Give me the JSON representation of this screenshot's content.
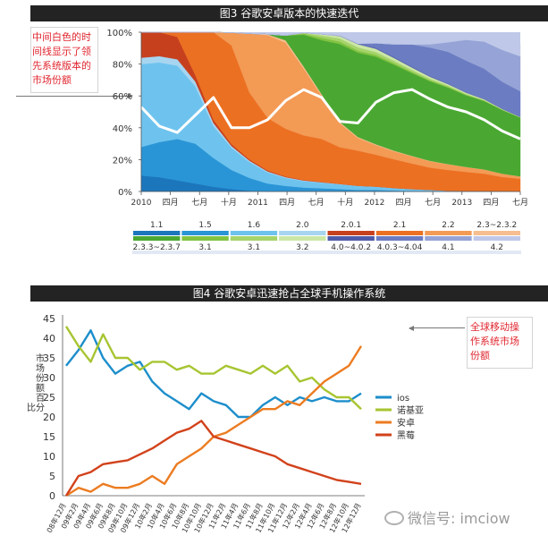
{
  "figure3": {
    "title": "图3 谷歌安卓版本的快速迭代",
    "note": "中间白色的时间线显示了领先系统版本的市场份额"
  },
  "figure4": {
    "title": "图4 谷歌安卓迅速抢占全球手机操作系统",
    "note": "全球移动操作系统市场份额"
  },
  "watermark": "微信号: imciow",
  "chart_data": [
    {
      "type": "area",
      "stacked": true,
      "x_ticks": [
        "2010",
        "四月",
        "七月",
        "十月",
        "2011",
        "四月",
        "七月",
        "十月",
        "2012",
        "四月",
        "七月",
        "2013",
        "四月",
        "七月"
      ],
      "y_ticks": [
        "0%",
        "20%",
        "40%",
        "60%",
        "80%",
        "100%"
      ],
      "ylim": [
        0,
        100
      ],
      "x": [
        0,
        2,
        4,
        6,
        8,
        10,
        12,
        14,
        16,
        18,
        20,
        22,
        24,
        26,
        28,
        30,
        32,
        34,
        36,
        38,
        40,
        42
      ],
      "series": [
        {
          "name": "1.1",
          "color": "#1c76bc",
          "values": [
            10,
            9,
            7,
            5,
            3,
            1.5,
            0.5,
            0,
            0,
            0,
            0,
            0,
            0,
            0,
            0,
            0,
            0,
            0,
            0,
            0,
            0,
            0
          ]
        },
        {
          "name": "1.5",
          "color": "#2a95d6",
          "values": [
            18,
            22,
            26,
            25,
            18,
            12,
            8,
            5,
            3.5,
            2.5,
            2,
            1.5,
            1,
            1,
            0.6,
            0.3,
            0.2,
            0,
            0,
            0,
            0,
            0
          ]
        },
        {
          "name": "1.6",
          "color": "#6ec3ee",
          "values": [
            52,
            50,
            46,
            36,
            20,
            14,
            10,
            7,
            5,
            4,
            3.5,
            3,
            2.5,
            2,
            1.6,
            1.2,
            0.8,
            0.5,
            0.3,
            0.2,
            0.1,
            0
          ]
        },
        {
          "name": "2.0",
          "color": "#a7d5f0",
          "values": [
            4,
            4,
            4,
            3,
            2,
            1,
            0.8,
            0.6,
            0.5,
            0.4,
            0.3,
            0.2,
            0.1,
            0.1,
            0,
            0,
            0,
            0,
            0,
            0,
            0,
            0
          ]
        },
        {
          "name": "2.0.1",
          "color": "#c7401e",
          "values": [
            16,
            15,
            14,
            4,
            2,
            1.2,
            0.8,
            0.6,
            0.4,
            0.3,
            0.2,
            0.1,
            0,
            0,
            0,
            0,
            0,
            0,
            0,
            0,
            0,
            0
          ]
        },
        {
          "name": "2.1",
          "color": "#ec7022",
          "values": [
            0,
            0,
            3,
            27,
            56,
            62,
            42,
            33,
            30,
            28,
            27,
            23,
            22,
            20,
            18,
            16,
            14,
            13,
            12,
            11,
            9,
            8
          ]
        },
        {
          "name": "2.2",
          "color": "#f39a55",
          "values": [
            0,
            0,
            0,
            0,
            0,
            8,
            37,
            52,
            54,
            42,
            27,
            15,
            8,
            6,
            5,
            4.5,
            4,
            3.5,
            3,
            2.5,
            2,
            1.5
          ]
        },
        {
          "name": "2.3~2.3.2",
          "color": "#f7be8f",
          "values": [
            0,
            0,
            0,
            0,
            0,
            0,
            0,
            0.5,
            1.5,
            1.2,
            1,
            0.8,
            0.6,
            0.5,
            0.4,
            0.3,
            0.2,
            0.2,
            0.1,
            0.1,
            0.1,
            0
          ]
        },
        {
          "name": "2.3.3~2.3.7",
          "color": "#4aa832",
          "values": [
            0,
            0,
            0,
            0,
            0,
            0,
            0,
            0,
            3,
            20,
            34,
            49,
            53,
            55,
            54,
            52,
            50,
            48,
            45,
            43,
            40,
            37
          ]
        },
        {
          "name": "3.1",
          "color": "#82c341",
          "values": [
            0,
            0,
            0,
            0,
            0,
            0,
            0,
            0,
            0,
            0.6,
            1.5,
            1.5,
            1.3,
            1.2,
            1,
            0.8,
            0.6,
            0.5,
            0.3,
            0.2,
            0.1,
            0
          ]
        },
        {
          "name": "3.1",
          "color": "#a6d46b",
          "values": [
            0,
            0,
            0,
            0,
            0,
            0,
            0,
            0,
            0,
            0.6,
            1.5,
            2,
            2,
            1.8,
            1.5,
            1.2,
            1,
            0.8,
            0.6,
            0.4,
            0.2,
            0.1
          ]
        },
        {
          "name": "3.2",
          "color": "#cce7a6",
          "values": [
            0,
            0,
            0,
            0,
            0,
            0,
            0,
            0,
            0,
            0,
            0.7,
            1.5,
            2,
            2,
            1.8,
            1.5,
            1.2,
            0.9,
            0.7,
            0.5,
            0.3,
            0.2
          ]
        },
        {
          "name": "4.0~4.0.2",
          "color": "#4f5aa8",
          "values": [
            0,
            0,
            0,
            0,
            0,
            0,
            0,
            0,
            0,
            0,
            0,
            0.2,
            0.3,
            0.5,
            0.5,
            0.5,
            0.4,
            0.3,
            0.2,
            0.2,
            0.1,
            0.1
          ]
        },
        {
          "name": "4.0.3~4.04",
          "color": "#6b7cc2",
          "values": [
            0,
            0,
            0,
            0,
            0,
            0,
            0,
            0,
            0,
            0,
            0,
            0,
            0,
            3,
            8,
            14,
            18,
            20,
            20,
            19,
            17,
            16
          ]
        },
        {
          "name": "4.1",
          "color": "#95a3d6",
          "values": [
            0,
            0,
            0,
            0,
            0,
            0,
            0,
            0,
            0,
            0,
            0,
            0,
            0,
            0,
            0,
            0,
            2,
            6,
            13,
            17,
            20,
            22
          ]
        },
        {
          "name": "4.2",
          "color": "#bfc8e8",
          "values": [
            0,
            0,
            0,
            0,
            0,
            0,
            0,
            0,
            0,
            0,
            0,
            0,
            0,
            0,
            0,
            0,
            0,
            0,
            0,
            1,
            3,
            8
          ]
        }
      ],
      "leading_line": [
        53,
        41,
        37,
        48,
        59,
        40,
        40,
        45,
        57,
        64,
        59,
        44,
        43,
        56,
        62,
        64,
        58,
        53,
        50,
        45,
        38,
        33
      ]
    },
    {
      "type": "line",
      "ylabel": "市场份额百分比",
      "ylim": [
        0,
        45
      ],
      "y_ticks": [
        0,
        5,
        10,
        15,
        20,
        25,
        30,
        35,
        40,
        45
      ],
      "categories": [
        "08年12月",
        "09年2月",
        "09年4月",
        "09年6月",
        "09年8月",
        "09年10月",
        "09年12月",
        "10年2月",
        "10年4月",
        "10年6月",
        "10年8月",
        "10年10月",
        "10年12月",
        "11年2月",
        "11年4月",
        "11年6月",
        "11年8月",
        "11年10月",
        "11年12月",
        "12年2月",
        "12年4月",
        "12年6月",
        "12年8月",
        "12年10月",
        "12年12月"
      ],
      "series": [
        {
          "name": "ios",
          "color": "#1d8ecb",
          "values": [
            33,
            37,
            42,
            35,
            31,
            33,
            34,
            29,
            26,
            24,
            22,
            26,
            24,
            23,
            20,
            20,
            23,
            25,
            23,
            25,
            24,
            25,
            24,
            24,
            26
          ]
        },
        {
          "name": "诺基亚",
          "color": "#a7c531",
          "values": [
            43,
            38,
            34,
            41,
            35,
            35,
            32,
            34,
            34,
            32,
            33,
            31,
            31,
            33,
            32,
            31,
            33,
            31,
            33,
            29,
            30,
            27,
            25,
            25,
            22
          ]
        },
        {
          "name": "安卓",
          "color": "#ec7c21",
          "values": [
            0,
            2,
            1,
            3,
            2,
            2,
            3,
            5,
            3,
            8,
            10,
            12,
            15,
            16,
            18,
            20,
            22,
            22,
            24,
            23,
            26,
            29,
            31,
            33,
            38
          ]
        },
        {
          "name": "黑莓",
          "color": "#d2421b",
          "values": [
            0,
            5,
            6,
            8,
            8.5,
            9,
            10.5,
            12,
            14,
            16,
            17,
            19,
            15,
            14,
            13,
            12,
            11,
            10,
            8,
            7,
            6,
            5,
            4,
            3.5,
            3
          ]
        }
      ]
    }
  ]
}
